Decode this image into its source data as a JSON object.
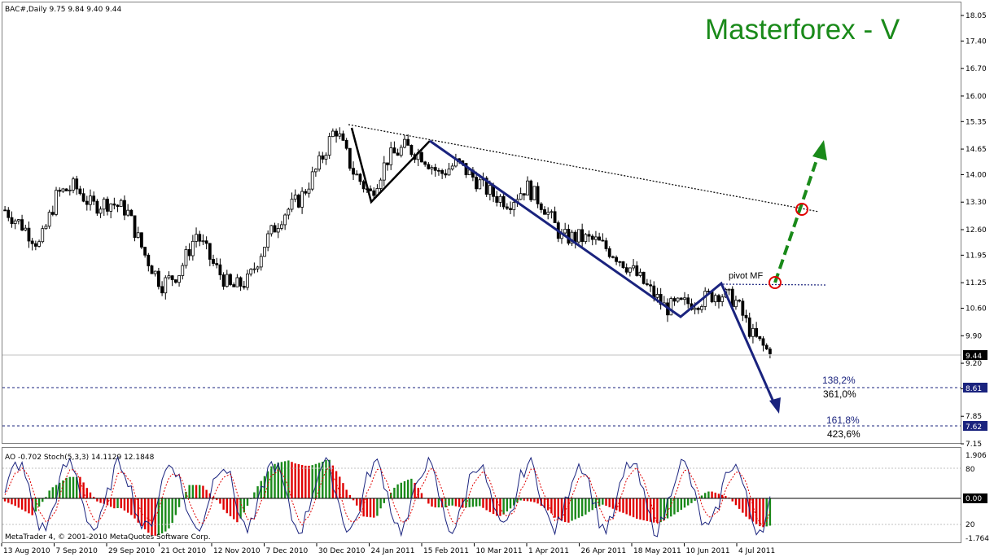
{
  "header": {
    "symbol_line": "BAC#,Daily  9.75 9.84 9.40 9.44",
    "watermark": "Masterforex - V",
    "watermark_color": "#1a8a1a"
  },
  "annotations": {
    "pivot_label": "pivot MF",
    "level1_ext_a": "138,2%",
    "level1_ext_b": "361,0%",
    "level2_ext_a": "161,8%",
    "level2_ext_b": "423,6%",
    "current_price_badge": "9.44",
    "level1_badge": "8.61",
    "level2_badge": "7.62"
  },
  "indicator": {
    "label": "AO -0.702  Stoch(5,3,3) 14.1129 12.1848",
    "copyright": "MetaTrader 4, © 2001-2010 MetaQuotes Software Corp.",
    "ticks": [
      "1.906",
      "80",
      "0.00",
      "20",
      "-1.764"
    ]
  },
  "chart_data": {
    "type": "candlestick",
    "symbol": "BAC#",
    "timeframe": "Daily",
    "last": {
      "open": 9.75,
      "high": 9.84,
      "low": 9.4,
      "close": 9.44
    },
    "ylim": [
      7.15,
      18.05
    ],
    "y_ticks": [
      "18.05",
      "17.40",
      "16.70",
      "16.00",
      "15.35",
      "14.65",
      "14.00",
      "13.30",
      "12.60",
      "11.95",
      "11.25",
      "10.60",
      "9.90",
      "9.20",
      "8.55",
      "7.85",
      "7.15"
    ],
    "x_ticks": [
      "13 Aug 2010",
      "7 Sep 2010",
      "29 Sep 2010",
      "21 Oct 2010",
      "12 Nov 2010",
      "7 Dec 2010",
      "30 Dec 2010",
      "24 Jan 2011",
      "15 Feb 2011",
      "10 Mar 2011",
      "1 Apr 2011",
      "26 Apr 2011",
      "18 May 2011",
      "10 Jun 2011",
      "4 Jul 2011"
    ],
    "price_path": [
      [
        "13 Aug 2010",
        13.1
      ],
      [
        "20 Aug 2010",
        12.7
      ],
      [
        "27 Aug 2010",
        12.2
      ],
      [
        "7 Sep 2010",
        13.5
      ],
      [
        "14 Sep 2010",
        13.7
      ],
      [
        "21 Sep 2010",
        13.2
      ],
      [
        "29 Sep 2010",
        13.3
      ],
      [
        "6 Oct 2010",
        13.1
      ],
      [
        "13 Oct 2010",
        12.0
      ],
      [
        "21 Oct 2010",
        11.2
      ],
      [
        "28 Oct 2010",
        11.5
      ],
      [
        "4 Nov 2010",
        12.5
      ],
      [
        "12 Nov 2010",
        11.7
      ],
      [
        "19 Nov 2010",
        11.1
      ],
      [
        "29 Nov 2010",
        11.3
      ],
      [
        "7 Dec 2010",
        12.3
      ],
      [
        "14 Dec 2010",
        13.0
      ],
      [
        "22 Dec 2010",
        13.4
      ],
      [
        "30 Dec 2010",
        14.2
      ],
      [
        "7 Jan 2011",
        15.2
      ],
      [
        "14 Jan 2011",
        14.1
      ],
      [
        "24 Jan 2011",
        13.5
      ],
      [
        "1 Feb 2011",
        14.4
      ],
      [
        "8 Feb 2011",
        14.7
      ],
      [
        "15 Feb 2011",
        14.5
      ],
      [
        "22 Feb 2011",
        14.0
      ],
      [
        "1 Mar 2011",
        14.3
      ],
      [
        "10 Mar 2011",
        13.9
      ],
      [
        "17 Mar 2011",
        13.5
      ],
      [
        "24 Mar 2011",
        13.3
      ],
      [
        "1 Apr 2011",
        13.7
      ],
      [
        "8 Apr 2011",
        13.2
      ],
      [
        "15 Apr 2011",
        12.4
      ],
      [
        "26 Apr 2011",
        12.4
      ],
      [
        "3 May 2011",
        12.3
      ],
      [
        "10 May 2011",
        12.0
      ],
      [
        "18 May 2011",
        11.6
      ],
      [
        "25 May 2011",
        11.1
      ],
      [
        "2 Jun 2011",
        10.6
      ],
      [
        "10 Jun 2011",
        10.7
      ],
      [
        "17 Jun 2011",
        10.8
      ],
      [
        "24 Jun 2011",
        11.0
      ],
      [
        "4 Jul 2011",
        10.8
      ],
      [
        "11 Jul 2011",
        9.9
      ],
      [
        "15 Jul 2011",
        9.44
      ]
    ]
  }
}
